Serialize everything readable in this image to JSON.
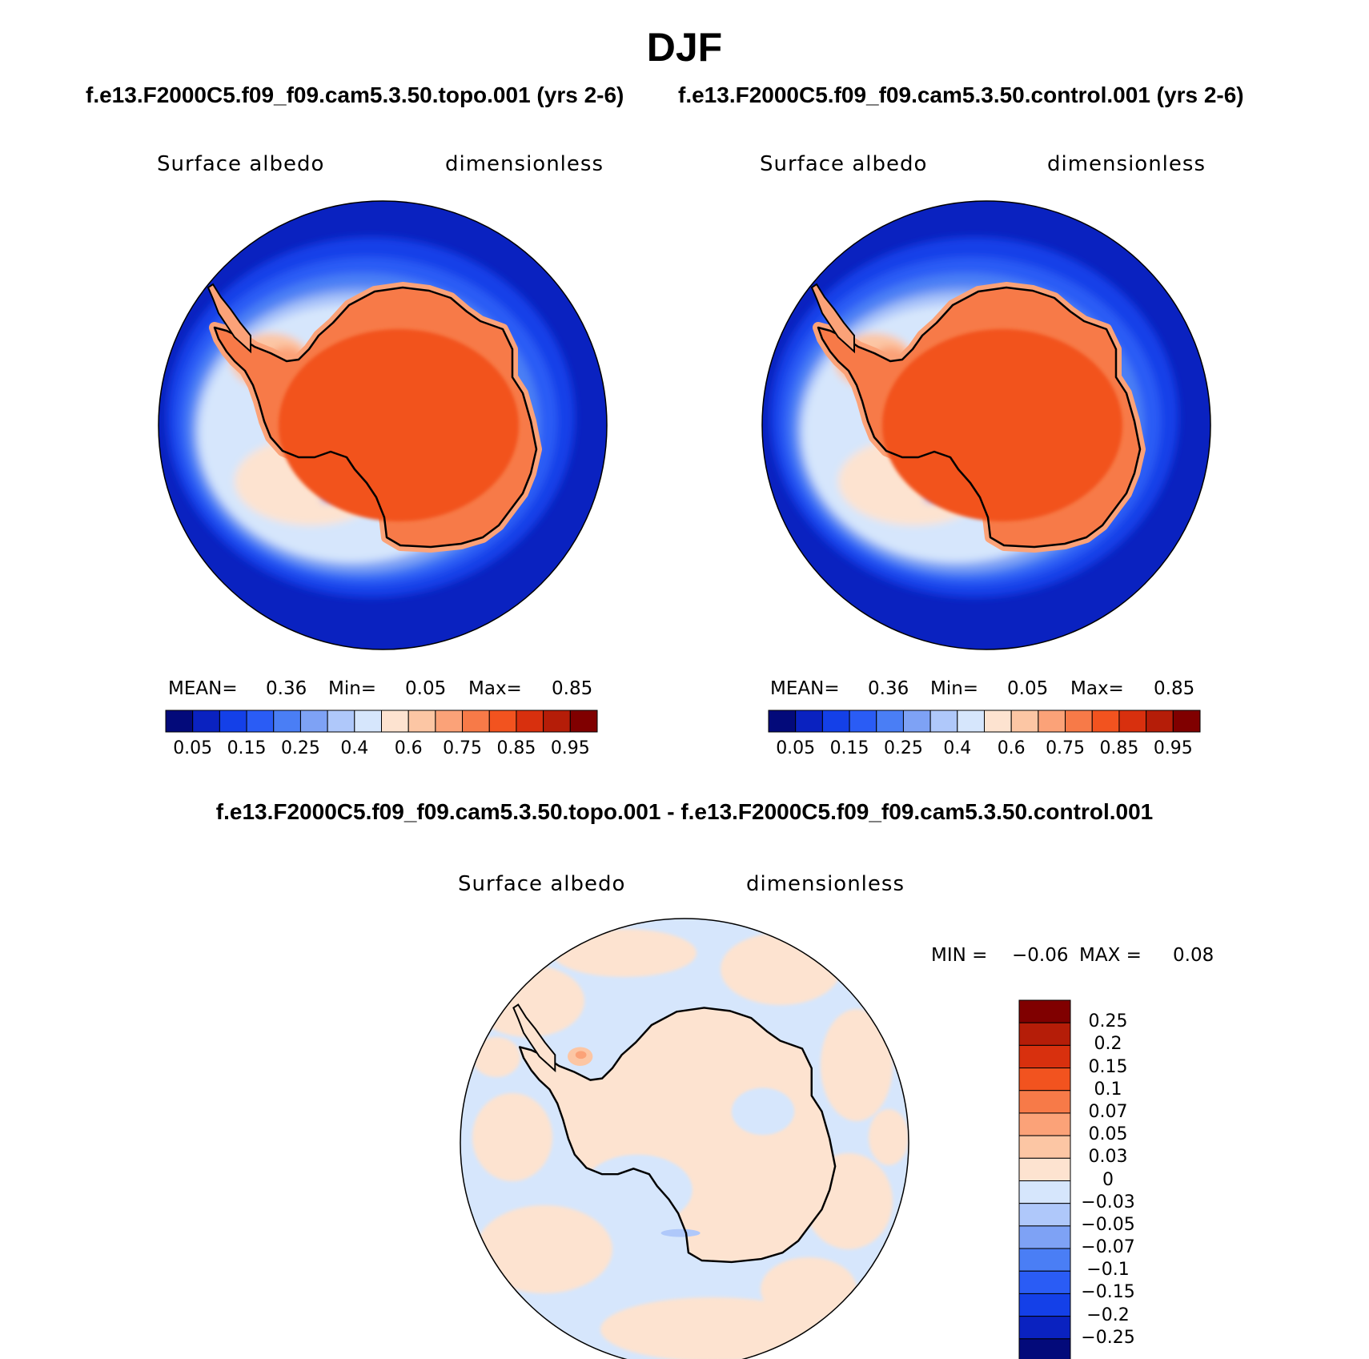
{
  "figure": {
    "title": "DJF"
  },
  "panels": [
    {
      "case_title": "f.e13.F2000C5.f09_f09.cam5.3.50.topo.001 (yrs 2-6)",
      "variable": "Surface albedo",
      "units": "dimensionless",
      "stats": {
        "mean_label": "MEAN=",
        "mean": "0.36",
        "min_label": "Min=",
        "min": "0.05",
        "max_label": "Max=",
        "max": "0.85"
      }
    },
    {
      "case_title": "f.e13.F2000C5.f09_f09.cam5.3.50.control.001 (yrs 2-6)",
      "variable": "Surface albedo",
      "units": "dimensionless",
      "stats": {
        "mean_label": "MEAN=",
        "mean": "0.36",
        "min_label": "Min=",
        "min": "0.05",
        "max_label": "Max=",
        "max": "0.85"
      }
    }
  ],
  "diff_panel": {
    "title": "f.e13.F2000C5.f09_f09.cam5.3.50.topo.001 - f.e13.F2000C5.f09_f09.cam5.3.50.control.001",
    "variable": "Surface albedo",
    "units": "dimensionless",
    "stats": {
      "min_label": "MIN =",
      "min": "−0.06",
      "max_label": "MAX =",
      "max": "0.08"
    }
  },
  "colorbars": {
    "abs": {
      "colors": [
        "#030a7a",
        "#0a22c0",
        "#1440e8",
        "#2a5cf5",
        "#4a7ef5",
        "#7ea2f5",
        "#afc8fa",
        "#d6e6fc",
        "#fde3d0",
        "#fcc6a4",
        "#fba278",
        "#f77a48",
        "#f2531f",
        "#d8300e",
        "#b51d08",
        "#800000"
      ],
      "labels": [
        "0.05",
        "0.15",
        "0.25",
        "0.4",
        "0.6",
        "0.75",
        "0.85",
        "0.95"
      ]
    },
    "diff": {
      "colors": [
        "#800000",
        "#b51d08",
        "#d8300e",
        "#f2531f",
        "#f77a48",
        "#fba278",
        "#fcc6a4",
        "#fde3d0",
        "#d6e6fc",
        "#afc8fa",
        "#7ea2f5",
        "#4a7ef5",
        "#2a5cf5",
        "#1440e8",
        "#0a22c0",
        "#030a7a"
      ],
      "labels": [
        "0.25",
        "0.2",
        "0.15",
        "0.1",
        "0.07",
        "0.05",
        "0.03",
        "0",
        "−0.03",
        "−0.05",
        "−0.07",
        "−0.1",
        "−0.15",
        "−0.2",
        "−0.25"
      ]
    }
  }
}
